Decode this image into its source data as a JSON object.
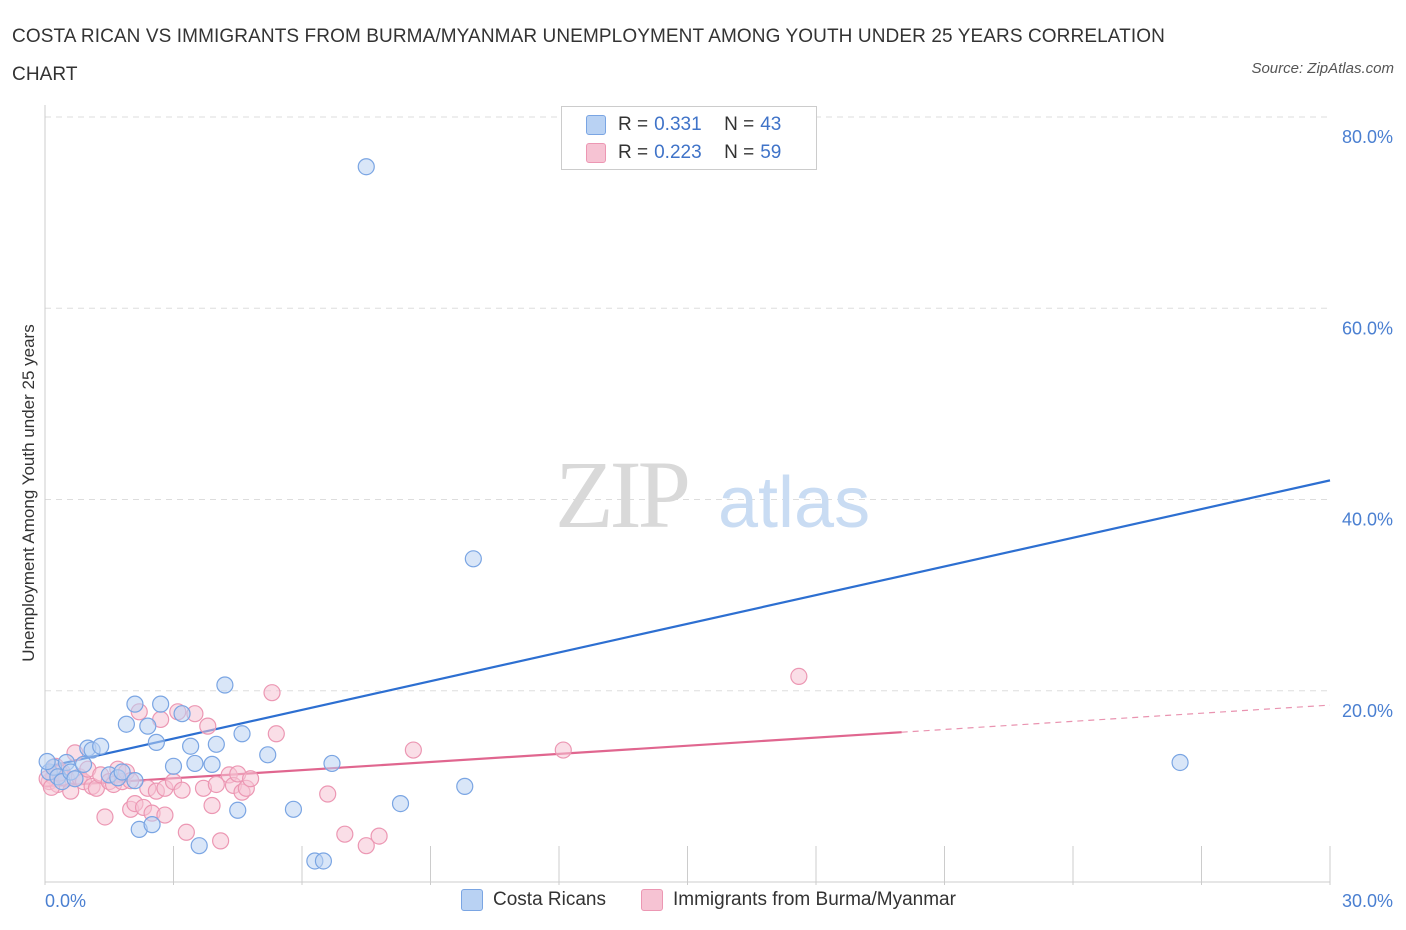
{
  "title": "COSTA RICAN VS IMMIGRANTS FROM BURMA/MYANMAR UNEMPLOYMENT AMONG YOUTH UNDER 25 YEARS CORRELATION CHART",
  "source": "Source: ZipAtlas.com",
  "watermark": {
    "zip": "ZIP",
    "atlas": "atlas"
  },
  "colors": {
    "blue_fill": "#b9d2f3",
    "blue_stroke": "#7aa5e3",
    "blue_line": "#2d6fd1",
    "pink_fill": "#f6c3d3",
    "pink_stroke": "#ec97b3",
    "pink_line": "#e0668f",
    "grid": "#dddddd",
    "axis_text": "#4a7fd1"
  },
  "legend": {
    "rows": [
      {
        "r_label": "R =",
        "r_value": "0.331",
        "n_label": "N =",
        "n_value": "43"
      },
      {
        "r_label": "R =",
        "r_value": "0.223",
        "n_label": "N =",
        "n_value": "59"
      }
    ]
  },
  "bottom_legend": {
    "series1": "Costa Ricans",
    "series2": "Immigrants from Burma/Myanmar"
  },
  "chart_data": {
    "type": "scatter",
    "xlabel": "",
    "ylabel": "Unemployment Among Youth under 25 years",
    "xlim": [
      0,
      30
    ],
    "ylim": [
      0,
      80
    ],
    "x_tick_labels": {
      "min": "0.0%",
      "max": "30.0%"
    },
    "y_ticks": [
      20,
      40,
      60,
      80
    ],
    "y_tick_labels": [
      "20.0%",
      "40.0%",
      "60.0%",
      "80.0%"
    ],
    "x_minor_ticks": [
      0,
      3,
      6,
      9,
      12,
      15,
      18,
      21,
      24,
      27,
      30
    ],
    "series": [
      {
        "name": "Costa Ricans",
        "R": 0.331,
        "N": 43,
        "trend": {
          "x": [
            0,
            30
          ],
          "y": [
            12.0,
            42.0
          ],
          "solid_to": 30
        },
        "points": [
          [
            0.1,
            11.5
          ],
          [
            0.2,
            12
          ],
          [
            0.3,
            11
          ],
          [
            0.4,
            10.5
          ],
          [
            0.5,
            12.5
          ],
          [
            0.6,
            11.5
          ],
          [
            0.7,
            10.8
          ],
          [
            0.9,
            12.3
          ],
          [
            1.0,
            14
          ],
          [
            1.1,
            13.8
          ],
          [
            1.3,
            14.2
          ],
          [
            1.5,
            11.2
          ],
          [
            1.7,
            10.9
          ],
          [
            1.8,
            11.5
          ],
          [
            1.9,
            16.5
          ],
          [
            2.1,
            10.6
          ],
          [
            2.1,
            18.6
          ],
          [
            2.2,
            5.5
          ],
          [
            2.4,
            16.3
          ],
          [
            2.5,
            6
          ],
          [
            2.6,
            14.6
          ],
          [
            2.7,
            18.6
          ],
          [
            3.0,
            12.1
          ],
          [
            3.2,
            17.6
          ],
          [
            3.4,
            14.2
          ],
          [
            3.5,
            12.4
          ],
          [
            3.6,
            3.8
          ],
          [
            3.9,
            12.3
          ],
          [
            4.0,
            14.4
          ],
          [
            4.2,
            20.6
          ],
          [
            4.5,
            7.5
          ],
          [
            4.6,
            15.5
          ],
          [
            5.2,
            13.3
          ],
          [
            5.8,
            7.6
          ],
          [
            6.3,
            2.2
          ],
          [
            6.5,
            2.2
          ],
          [
            6.7,
            12.4
          ],
          [
            7.5,
            74.8
          ],
          [
            8.3,
            8.2
          ],
          [
            9.8,
            10
          ],
          [
            10.0,
            33.8
          ],
          [
            26.5,
            12.5
          ],
          [
            0.05,
            12.6
          ]
        ]
      },
      {
        "name": "Immigrants from Burma/Myanmar",
        "R": 0.223,
        "N": 59,
        "trend": {
          "x": [
            0,
            30
          ],
          "y": [
            10.0,
            18.5
          ],
          "solid_to": 20
        },
        "points": [
          [
            0.1,
            10.5
          ],
          [
            0.2,
            11
          ],
          [
            0.3,
            10.2
          ],
          [
            0.4,
            11.5
          ],
          [
            0.5,
            10.8
          ],
          [
            0.6,
            9.5
          ],
          [
            0.7,
            13.5
          ],
          [
            0.8,
            11
          ],
          [
            0.9,
            10.5
          ],
          [
            1.0,
            11.8
          ],
          [
            1.1,
            10
          ],
          [
            1.2,
            9.8
          ],
          [
            1.3,
            11.2
          ],
          [
            1.4,
            6.8
          ],
          [
            1.5,
            10.5
          ],
          [
            1.6,
            10.2
          ],
          [
            1.7,
            11.8
          ],
          [
            1.8,
            10.5
          ],
          [
            1.9,
            11.5
          ],
          [
            2.0,
            10.6
          ],
          [
            2.0,
            7.6
          ],
          [
            2.1,
            8.2
          ],
          [
            2.2,
            17.8
          ],
          [
            2.3,
            7.8
          ],
          [
            2.4,
            9.8
          ],
          [
            2.5,
            7.2
          ],
          [
            2.6,
            9.5
          ],
          [
            2.7,
            17
          ],
          [
            2.8,
            9.8
          ],
          [
            2.8,
            7
          ],
          [
            3.0,
            10.5
          ],
          [
            3.1,
            17.8
          ],
          [
            3.2,
            9.6
          ],
          [
            3.3,
            5.2
          ],
          [
            3.5,
            17.6
          ],
          [
            3.7,
            9.8
          ],
          [
            3.8,
            16.3
          ],
          [
            3.9,
            8
          ],
          [
            4.0,
            10.2
          ],
          [
            4.1,
            4.3
          ],
          [
            4.3,
            11.2
          ],
          [
            4.4,
            10.1
          ],
          [
            4.5,
            11.3
          ],
          [
            4.6,
            9.4
          ],
          [
            4.7,
            9.8
          ],
          [
            4.8,
            10.8
          ],
          [
            5.3,
            19.8
          ],
          [
            5.4,
            15.5
          ],
          [
            6.6,
            9.2
          ],
          [
            7.0,
            5
          ],
          [
            7.5,
            3.8
          ],
          [
            7.8,
            4.8
          ],
          [
            8.6,
            13.8
          ],
          [
            12.1,
            13.8
          ],
          [
            17.6,
            21.5
          ],
          [
            0.05,
            10.8
          ],
          [
            0.15,
            9.9
          ],
          [
            0.25,
            12.1
          ],
          [
            0.35,
            11.4
          ]
        ]
      }
    ]
  }
}
